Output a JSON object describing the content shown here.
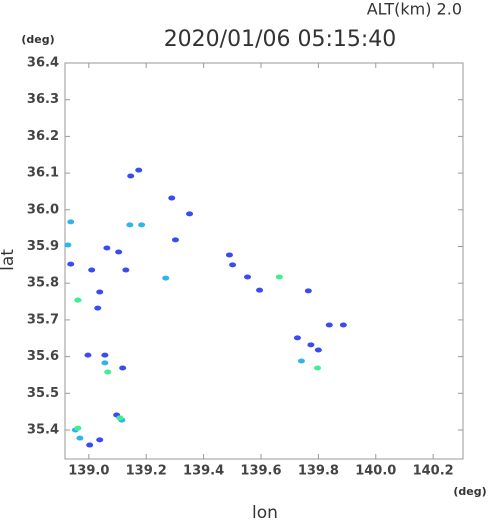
{
  "chart_data": {
    "type": "scatter",
    "title": "2020/01/06 05:15:40",
    "annotation": "ALT(km) 2.0",
    "x_unit": "(deg)",
    "y_unit": "(deg)",
    "x_label": "lon",
    "y_label": "lat",
    "xlim": [
      138.917,
      140.304
    ],
    "ylim": [
      35.321,
      36.4
    ],
    "xticks": [
      {
        "value": 139.0,
        "label": "139.0"
      },
      139.2,
      139.4,
      139.6,
      139.8,
      {
        "value": 140.0,
        "label": "140.0"
      },
      140.2
    ],
    "yticks": [
      {
        "value": 35.4,
        "label": "35.4"
      },
      35.5,
      35.6,
      35.7,
      35.8,
      35.9,
      {
        "value": 36.0,
        "label": "36.0"
      },
      36.1,
      36.2,
      36.3,
      36.4
    ],
    "series": [
      {
        "color": "#3a4cf0",
        "x": [
          139.146,
          139.174,
          139.289,
          139.351,
          139.302,
          139.063,
          139.01,
          139.038,
          139.129,
          139.031,
          139.056,
          139.118,
          138.997,
          139.49,
          139.501,
          139.553,
          139.595,
          139.765,
          139.838,
          139.887,
          139.727,
          139.774,
          139.8,
          139.003,
          139.097,
          139.038,
          138.937,
          139.104
        ],
        "y": [
          36.092,
          36.108,
          36.032,
          35.989,
          35.918,
          35.896,
          35.836,
          35.776,
          35.836,
          35.732,
          35.604,
          35.569,
          35.604,
          35.877,
          35.85,
          35.817,
          35.781,
          35.779,
          35.686,
          35.686,
          35.651,
          35.632,
          35.618,
          35.359,
          35.441,
          35.373,
          35.852,
          35.885
        ]
      },
      {
        "color": "#30b4f0",
        "x": [
          139.143,
          139.184,
          138.927,
          138.962,
          139.056,
          139.115,
          138.953,
          138.969,
          139.268,
          139.741,
          138.937
        ],
        "y": [
          35.959,
          35.959,
          35.904,
          35.754,
          35.583,
          35.427,
          35.4,
          35.378,
          35.814,
          35.588,
          35.967
        ]
      },
      {
        "color": "#40f090",
        "x": [
          139.797,
          139.066,
          139.108,
          138.962,
          138.962,
          139.664
        ],
        "y": [
          35.569,
          35.558,
          35.433,
          35.405,
          35.754,
          35.817
        ]
      }
    ]
  }
}
